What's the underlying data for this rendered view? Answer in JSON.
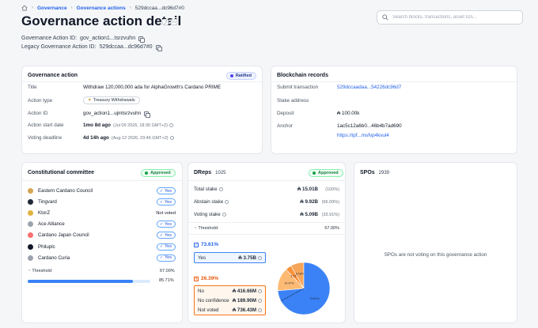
{
  "breadcrumb": {
    "items": [
      "Governance",
      "Governance actions"
    ],
    "current": "529dccaa...dc96d7#0"
  },
  "page": {
    "title": "Governance action detail",
    "gov_action_id_label": "Governance Action ID:",
    "gov_action_id": "gov_action1...tsrzvuhn",
    "legacy_id_label": "Legacy Governance Action ID:",
    "legacy_id": "529dccaa...dc96d7#0"
  },
  "search": {
    "placeholder": "Search blocks, transactions, asset IDs..."
  },
  "governance_action": {
    "title": "Governance action",
    "status": "Ratified",
    "rows": [
      {
        "label": "Title",
        "value": "Withdraw 120,000,000 ada for AlphaGrowth's Cardano PRIME"
      },
      {
        "label": "Action type",
        "value": "Treasury Withdrawals"
      },
      {
        "label": "Action ID",
        "value": "gov_action1...ujmtsrzvuhn"
      },
      {
        "label": "Action start date",
        "value": "1mo 8d ago",
        "sub": "(Jul 09 2026, 18:30 GMT+2)"
      },
      {
        "label": "Voting deadline",
        "value": "4d 14h ago",
        "sub": "(Aug 12 2026, 23:46 GMT+2)"
      }
    ]
  },
  "blockchain_records": {
    "title": "Blockchain records",
    "submit_tx_label": "Submit transaction",
    "submit_tx": "529dccaadaa...54226dc96d7",
    "stake_address_label": "Stake address",
    "deposit_label": "Deposit",
    "deposit": "₳ 100.00k",
    "anchor_label": "Anchor",
    "anchor_hash": "1ac5c12a6b0...46b4b7ad690",
    "anchor_url": "https://ipf...msfvp4kvul4"
  },
  "committee": {
    "title": "Constitutional committee",
    "status": "Approved",
    "members": [
      {
        "name": "Eastern Cardano Council",
        "vote": "Yes",
        "color": "#d6a553"
      },
      {
        "name": "Tingvard",
        "vote": "Yes",
        "color": "#1f2937"
      },
      {
        "name": "KtorZ",
        "vote": "Not voted",
        "color": "#e0b341"
      },
      {
        "name": "Ace Alliance",
        "vote": "Yes",
        "color": "#9ca3af"
      },
      {
        "name": "Cardano Japan Council",
        "vote": "Yes",
        "color": "#f87171"
      },
      {
        "name": "Philuplc",
        "vote": "Yes",
        "color": "#111827"
      },
      {
        "name": "Cardano Curia",
        "vote": "Yes",
        "color": "#9ca3af"
      }
    ],
    "threshold_label": "Threshold:",
    "threshold": "67.00%",
    "progress": "85.71%",
    "progress_value": 0.8571
  },
  "dreps": {
    "title": "DReps",
    "count": "1025",
    "status": "Approved",
    "stats": [
      {
        "label": "Total stake",
        "value": "₳ 15.01B",
        "pct": "(100%)"
      },
      {
        "label": "Abstain stake",
        "value": "₳ 9.92B",
        "pct": "(66.09%)"
      },
      {
        "label": "Voting stake",
        "value": "₳ 5.09B",
        "pct": "(33.91%)"
      }
    ],
    "threshold_label": "Threshold:",
    "threshold": "67.00%",
    "yes_pct": "73.61%",
    "yes_label": "Yes",
    "yes_value": "₳ 3.75B",
    "no_pct": "26.39%",
    "no_rows": [
      {
        "label": "No",
        "value": "₳ 416.66M"
      },
      {
        "label": "No confidence",
        "value": "₳ 189.90M"
      },
      {
        "label": "Not voted",
        "value": "₳ 736.43M"
      }
    ],
    "pie_labels": [
      "73.61%",
      "14.47%",
      "3.73%",
      "8.18%"
    ]
  },
  "spos": {
    "title": "SPOs",
    "count": "2939",
    "message": "SPOs are not voting on this governance action"
  },
  "colors": {
    "blue": "#2563eb",
    "orange": "#f97316",
    "green": "#16a34a"
  }
}
